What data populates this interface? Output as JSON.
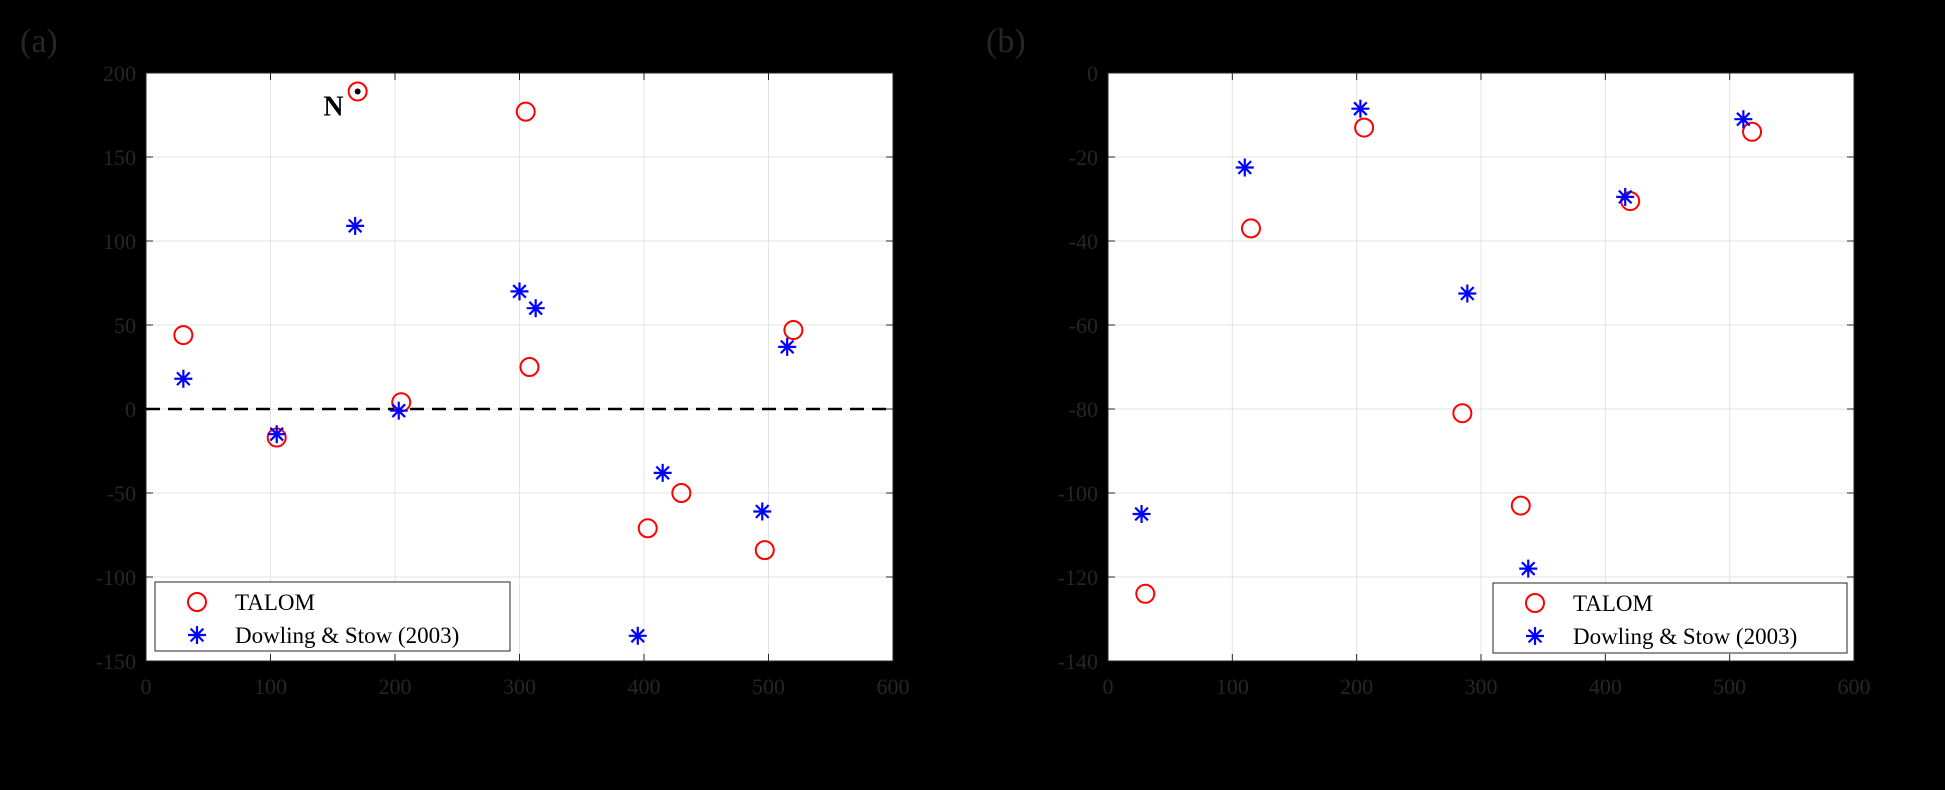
{
  "chart_data": [
    {
      "type": "scatter",
      "panel_label": "(a)",
      "xlim": [
        0,
        600
      ],
      "ylim": [
        -150,
        200
      ],
      "xticks": [
        0,
        100,
        200,
        300,
        400,
        500,
        600
      ],
      "yticks": [
        -150,
        -100,
        -50,
        0,
        50,
        100,
        150,
        200
      ],
      "grid": true,
      "reference_line": {
        "y": 0,
        "style": "dashed",
        "color": "#000000"
      },
      "legend_position": "bottom-left",
      "annotation": {
        "text": "N",
        "x": 170,
        "y": 189
      },
      "series": [
        {
          "name": "TALOM",
          "marker": "circle",
          "color": "#ff0000",
          "points": [
            [
              30,
              44
            ],
            [
              105,
              -17
            ],
            [
              205,
              4
            ],
            [
              170,
              189
            ],
            [
              305,
              177
            ],
            [
              308,
              25
            ],
            [
              403,
              -71
            ],
            [
              430,
              -50
            ],
            [
              497,
              -84
            ],
            [
              520,
              47
            ]
          ]
        },
        {
          "name": "Dowling & Stow (2003)",
          "marker": "asterisk",
          "color": "#0000ff",
          "points": [
            [
              30,
              18
            ],
            [
              105,
              -15
            ],
            [
              203,
              -1
            ],
            [
              168,
              109
            ],
            [
              300,
              70
            ],
            [
              313,
              60
            ],
            [
              415,
              -38
            ],
            [
              395,
              -135
            ],
            [
              495,
              -61
            ],
            [
              515,
              37
            ]
          ]
        }
      ]
    },
    {
      "type": "scatter",
      "panel_label": "(b)",
      "xlim": [
        0,
        600
      ],
      "ylim": [
        -140,
        0
      ],
      "xticks": [
        0,
        100,
        200,
        300,
        400,
        500,
        600
      ],
      "yticks": [
        -140,
        -120,
        -100,
        -80,
        -60,
        -40,
        -20,
        0
      ],
      "grid": true,
      "legend_position": "bottom-right",
      "series": [
        {
          "name": "TALOM",
          "marker": "circle",
          "color": "#ff0000",
          "points": [
            [
              30,
              -124
            ],
            [
              115,
              -37
            ],
            [
              206,
              -13
            ],
            [
              285,
              -81
            ],
            [
              332,
              -103
            ],
            [
              420,
              -30.5
            ],
            [
              518,
              -14
            ]
          ]
        },
        {
          "name": "Dowling & Stow (2003)",
          "marker": "asterisk",
          "color": "#0000ff",
          "points": [
            [
              27,
              -105
            ],
            [
              110,
              -22.5
            ],
            [
              203,
              -8.5
            ],
            [
              289,
              -52.5
            ],
            [
              338,
              -118
            ],
            [
              416,
              -29.5
            ],
            [
              511,
              -11
            ]
          ]
        }
      ]
    }
  ]
}
